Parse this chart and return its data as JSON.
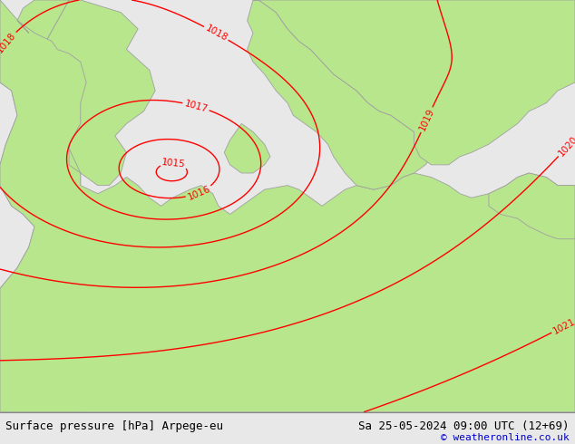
{
  "title_left": "Surface pressure [hPa] Arpege-eu",
  "title_right": "Sa 25-05-2024 09:00 UTC (12+69)",
  "copyright": "© weatheronline.co.uk",
  "bg_color": "#e8e8e8",
  "land_color": "#b8e68c",
  "sea_color": "#e0e0e0",
  "contour_color": "#ff0000",
  "label_color": "#ff0000",
  "border_color": "#a0a0a0",
  "bottom_bar_color": "#ffffff",
  "bottom_text_color": "#000000",
  "copyright_color": "#0000cc",
  "figsize": [
    6.34,
    4.9
  ],
  "dpi": 100,
  "bottom_bar_height": 0.072
}
